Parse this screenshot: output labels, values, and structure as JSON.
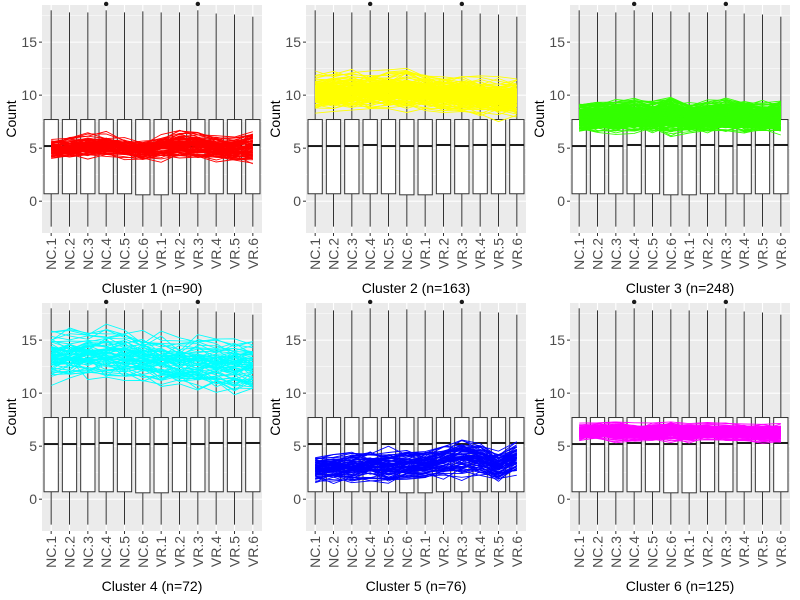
{
  "figure": {
    "samples": [
      "NC.1",
      "NC.2",
      "NC.3",
      "NC.4",
      "NC.5",
      "NC.6",
      "VR.1",
      "VR.2",
      "VR.3",
      "VR.4",
      "VR.5",
      "VR.6"
    ],
    "ylabel": "Count",
    "ylim": [
      -3,
      18.5
    ],
    "yticks": [
      0,
      5,
      10,
      15
    ],
    "panel_bg": "#ebebeb",
    "grid_color": "#ffffff"
  },
  "chart_data": [
    {
      "type": "box+line",
      "title": "Cluster 1 (n=90)",
      "line_color": "#ff0000",
      "n_lines": 90,
      "line_center": [
        4.9,
        5.0,
        5.1,
        5.2,
        5.0,
        4.8,
        5.1,
        5.3,
        5.2,
        5.0,
        4.9,
        5.1
      ],
      "line_spread": [
        0.7,
        0.7,
        0.8,
        0.8,
        0.7,
        0.7,
        0.8,
        1.0,
        1.0,
        0.9,
        0.9,
        1.2
      ],
      "box": {
        "whisker_low": [
          -2.4,
          -2.4,
          -2.4,
          -2.4,
          -2.4,
          -2.4,
          -2.4,
          -2.4,
          -2.4,
          -2.4,
          -2.4,
          -2.4
        ],
        "q1": [
          0.7,
          0.7,
          0.7,
          0.7,
          0.7,
          0.6,
          0.6,
          0.7,
          0.7,
          0.7,
          0.7,
          0.7
        ],
        "median": [
          5.2,
          5.2,
          5.2,
          5.3,
          5.2,
          5.2,
          5.2,
          5.3,
          5.2,
          5.3,
          5.3,
          5.3
        ],
        "q3": [
          7.7,
          7.7,
          7.7,
          7.7,
          7.7,
          7.7,
          7.7,
          7.7,
          7.7,
          7.7,
          7.7,
          7.7
        ],
        "whisker_high": [
          18.0,
          17.8,
          17.8,
          18.0,
          17.8,
          17.9,
          17.8,
          17.8,
          18.0,
          17.7,
          17.6,
          17.4
        ],
        "outliers": [
          [],
          [],
          [],
          [
            18.6
          ],
          [],
          [],
          [],
          [],
          [
            18.6
          ],
          [],
          [],
          []
        ]
      }
    },
    {
      "type": "box+line",
      "title": "Cluster 2 (n=163)",
      "line_color": "#ffff00",
      "n_lines": 163,
      "line_center": [
        10.2,
        10.2,
        10.3,
        10.3,
        10.4,
        10.4,
        10.2,
        10.0,
        10.0,
        9.8,
        9.7,
        9.7
      ],
      "line_spread": [
        1.0,
        1.0,
        1.0,
        1.0,
        1.0,
        1.1,
        1.0,
        1.0,
        1.0,
        1.0,
        1.0,
        1.0
      ],
      "box": {
        "whisker_low": [
          -2.4,
          -2.4,
          -2.4,
          -2.4,
          -2.4,
          -2.4,
          -2.4,
          -2.4,
          -2.4,
          -2.4,
          -2.4,
          -2.4
        ],
        "q1": [
          0.7,
          0.7,
          0.7,
          0.7,
          0.7,
          0.6,
          0.6,
          0.7,
          0.7,
          0.7,
          0.7,
          0.7
        ],
        "median": [
          5.2,
          5.2,
          5.2,
          5.3,
          5.2,
          5.2,
          5.2,
          5.3,
          5.2,
          5.3,
          5.3,
          5.3
        ],
        "q3": [
          7.7,
          7.7,
          7.7,
          7.7,
          7.7,
          7.7,
          7.7,
          7.7,
          7.7,
          7.7,
          7.7,
          7.7
        ],
        "whisker_high": [
          18.0,
          17.8,
          17.8,
          18.0,
          17.8,
          17.9,
          17.8,
          17.8,
          18.0,
          17.7,
          17.6,
          17.4
        ],
        "outliers": [
          [],
          [],
          [],
          [
            18.6
          ],
          [],
          [],
          [],
          [],
          [
            18.6
          ],
          [],
          [],
          []
        ]
      }
    },
    {
      "type": "box+line",
      "title": "Cluster 3 (n=248)",
      "line_color": "#33ff00",
      "n_lines": 248,
      "line_center": [
        7.9,
        8.0,
        8.0,
        8.1,
        8.0,
        8.1,
        7.9,
        8.0,
        8.1,
        8.0,
        7.9,
        8.0
      ],
      "line_spread": [
        0.9,
        0.9,
        1.0,
        1.0,
        0.9,
        1.1,
        0.9,
        1.0,
        1.0,
        1.0,
        0.9,
        1.0
      ],
      "box": {
        "whisker_low": [
          -2.4,
          -2.4,
          -2.4,
          -2.4,
          -2.4,
          -2.4,
          -2.4,
          -2.4,
          -2.4,
          -2.4,
          -2.4,
          -2.4
        ],
        "q1": [
          0.7,
          0.7,
          0.7,
          0.7,
          0.7,
          0.6,
          0.6,
          0.7,
          0.7,
          0.7,
          0.7,
          0.7
        ],
        "median": [
          5.2,
          5.2,
          5.2,
          5.3,
          5.2,
          5.2,
          5.2,
          5.3,
          5.2,
          5.3,
          5.3,
          5.3
        ],
        "q3": [
          7.7,
          7.7,
          7.7,
          7.7,
          7.7,
          7.7,
          7.7,
          7.7,
          7.7,
          7.7,
          7.7,
          7.7
        ],
        "whisker_high": [
          18.0,
          17.8,
          17.8,
          18.0,
          17.8,
          17.9,
          17.8,
          17.8,
          18.0,
          17.7,
          17.6,
          17.4
        ],
        "outliers": [
          [],
          [],
          [],
          [
            18.6
          ],
          [],
          [],
          [],
          [],
          [
            18.6
          ],
          [],
          [],
          []
        ]
      }
    },
    {
      "type": "box+line",
      "title": "Cluster 4 (n=72)",
      "line_color": "#00ffff",
      "n_lines": 72,
      "line_center": [
        13.2,
        13.3,
        13.4,
        13.4,
        13.2,
        13.0,
        12.8,
        12.6,
        12.6,
        12.5,
        12.4,
        12.3
      ],
      "line_spread": [
        1.6,
        1.6,
        1.6,
        1.7,
        1.6,
        1.6,
        1.6,
        1.6,
        1.7,
        1.6,
        1.7,
        1.7
      ],
      "box": {
        "whisker_low": [
          -2.4,
          -2.4,
          -2.4,
          -2.4,
          -2.4,
          -2.4,
          -2.4,
          -2.4,
          -2.4,
          -2.4,
          -2.4,
          -2.4
        ],
        "q1": [
          0.7,
          0.7,
          0.7,
          0.7,
          0.7,
          0.6,
          0.6,
          0.7,
          0.7,
          0.7,
          0.7,
          0.7
        ],
        "median": [
          5.2,
          5.2,
          5.2,
          5.3,
          5.2,
          5.2,
          5.2,
          5.3,
          5.2,
          5.3,
          5.3,
          5.3
        ],
        "q3": [
          7.7,
          7.7,
          7.7,
          7.7,
          7.7,
          7.7,
          7.7,
          7.7,
          7.7,
          7.7,
          7.7,
          7.7
        ],
        "whisker_high": [
          18.0,
          17.8,
          17.8,
          18.0,
          17.8,
          17.9,
          17.8,
          17.8,
          18.0,
          17.7,
          17.6,
          17.4
        ],
        "outliers": [
          [],
          [],
          [],
          [
            18.6
          ],
          [],
          [],
          [],
          [],
          [
            18.6
          ],
          [],
          [],
          []
        ]
      }
    },
    {
      "type": "box+line",
      "title": "Cluster 5 (n=76)",
      "line_color": "#0000ff",
      "n_lines": 76,
      "line_center": [
        2.8,
        2.9,
        3.0,
        3.1,
        3.0,
        3.1,
        3.2,
        3.5,
        3.9,
        3.7,
        3.0,
        3.8
      ],
      "line_spread": [
        0.9,
        0.9,
        1.0,
        1.0,
        1.0,
        1.0,
        1.0,
        1.1,
        1.2,
        1.1,
        1.0,
        1.1
      ],
      "box": {
        "whisker_low": [
          -2.4,
          -2.4,
          -2.4,
          -2.4,
          -2.4,
          -2.4,
          -2.4,
          -2.4,
          -2.4,
          -2.4,
          -2.4,
          -2.4
        ],
        "q1": [
          0.7,
          0.7,
          0.7,
          0.7,
          0.7,
          0.6,
          0.6,
          0.7,
          0.7,
          0.7,
          0.7,
          0.7
        ],
        "median": [
          5.2,
          5.2,
          5.2,
          5.3,
          5.2,
          5.2,
          5.2,
          5.3,
          5.2,
          5.3,
          5.3,
          5.3
        ],
        "q3": [
          7.7,
          7.7,
          7.7,
          7.7,
          7.7,
          7.7,
          7.7,
          7.7,
          7.7,
          7.7,
          7.7,
          7.7
        ],
        "whisker_high": [
          18.0,
          17.8,
          17.8,
          18.0,
          17.8,
          17.9,
          17.8,
          17.8,
          18.0,
          17.7,
          17.6,
          17.4
        ],
        "outliers": [
          [],
          [],
          [],
          [
            18.6
          ],
          [],
          [],
          [],
          [],
          [
            18.6
          ],
          [],
          [],
          []
        ]
      }
    },
    {
      "type": "box+line",
      "title": "Cluster 6 (n=125)",
      "line_color": "#ff00ff",
      "n_lines": 125,
      "line_center": [
        6.3,
        6.4,
        6.4,
        6.3,
        6.3,
        6.4,
        6.3,
        6.4,
        6.3,
        6.3,
        6.2,
        6.2
      ],
      "line_spread": [
        0.5,
        0.5,
        0.6,
        0.5,
        0.5,
        0.6,
        0.5,
        0.5,
        0.5,
        0.5,
        0.5,
        0.6
      ],
      "box": {
        "whisker_low": [
          -2.4,
          -2.4,
          -2.4,
          -2.4,
          -2.4,
          -2.4,
          -2.4,
          -2.4,
          -2.4,
          -2.4,
          -2.4,
          -2.4
        ],
        "q1": [
          0.7,
          0.7,
          0.7,
          0.7,
          0.7,
          0.6,
          0.6,
          0.7,
          0.7,
          0.7,
          0.7,
          0.7
        ],
        "median": [
          5.2,
          5.2,
          5.2,
          5.3,
          5.2,
          5.2,
          5.2,
          5.3,
          5.2,
          5.3,
          5.3,
          5.3
        ],
        "q3": [
          7.7,
          7.7,
          7.7,
          7.7,
          7.7,
          7.7,
          7.7,
          7.7,
          7.7,
          7.7,
          7.7,
          7.7
        ],
        "whisker_high": [
          18.0,
          17.8,
          17.8,
          18.0,
          17.8,
          17.9,
          17.8,
          17.8,
          18.0,
          17.7,
          17.6,
          17.4
        ],
        "outliers": [
          [],
          [],
          [],
          [
            18.6
          ],
          [],
          [],
          [],
          [],
          [
            18.6
          ],
          [],
          [],
          []
        ]
      }
    }
  ]
}
